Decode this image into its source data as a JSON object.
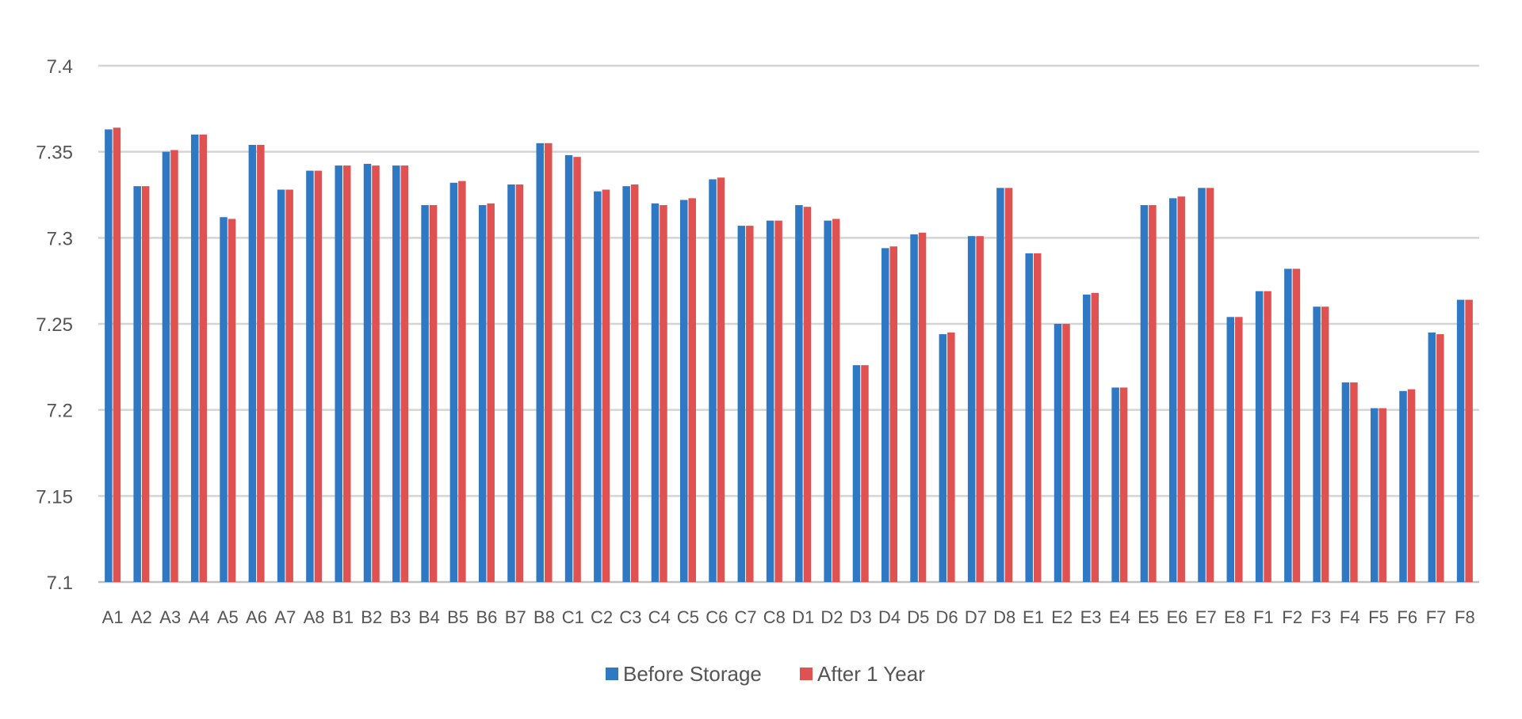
{
  "chart_data": {
    "type": "bar",
    "title": "",
    "xlabel": "",
    "ylabel": "",
    "ylim": [
      7.1,
      7.4
    ],
    "yticks": [
      "7.1",
      "7.15",
      "7.2",
      "7.25",
      "7.3",
      "7.35",
      "7.4"
    ],
    "grid": true,
    "legend_position": "bottom",
    "categories": [
      "A1",
      "A2",
      "A3",
      "A4",
      "A5",
      "A6",
      "A7",
      "A8",
      "B1",
      "B2",
      "B3",
      "B4",
      "B5",
      "B6",
      "B7",
      "B8",
      "C1",
      "C2",
      "C3",
      "C4",
      "C5",
      "C6",
      "C7",
      "C8",
      "D1",
      "D2",
      "D3",
      "D4",
      "D5",
      "D6",
      "D7",
      "D8",
      "E1",
      "E2",
      "E3",
      "E4",
      "E5",
      "E6",
      "E7",
      "E8",
      "F1",
      "F2",
      "F3",
      "F4",
      "F5",
      "F6",
      "F7",
      "F8"
    ],
    "series": [
      {
        "name": "Before Storage",
        "color": "#2e78c4",
        "values": [
          7.363,
          7.33,
          7.35,
          7.36,
          7.312,
          7.354,
          7.328,
          7.339,
          7.342,
          7.343,
          7.342,
          7.319,
          7.332,
          7.319,
          7.331,
          7.355,
          7.348,
          7.327,
          7.33,
          7.32,
          7.322,
          7.334,
          7.307,
          7.31,
          7.319,
          7.31,
          7.226,
          7.294,
          7.302,
          7.244,
          7.301,
          7.329,
          7.291,
          7.25,
          7.267,
          7.213,
          7.319,
          7.323,
          7.329,
          7.254,
          7.269,
          7.282,
          7.26,
          7.216,
          7.201,
          7.211,
          7.245,
          7.264
        ]
      },
      {
        "name": "After 1 Year",
        "color": "#e05252",
        "values": [
          7.364,
          7.33,
          7.351,
          7.36,
          7.311,
          7.354,
          7.328,
          7.339,
          7.342,
          7.342,
          7.342,
          7.319,
          7.333,
          7.32,
          7.331,
          7.355,
          7.347,
          7.328,
          7.331,
          7.319,
          7.323,
          7.335,
          7.307,
          7.31,
          7.318,
          7.311,
          7.226,
          7.295,
          7.303,
          7.245,
          7.301,
          7.329,
          7.291,
          7.25,
          7.268,
          7.213,
          7.319,
          7.324,
          7.329,
          7.254,
          7.269,
          7.282,
          7.26,
          7.216,
          7.201,
          7.212,
          7.244,
          7.264
        ]
      }
    ]
  }
}
